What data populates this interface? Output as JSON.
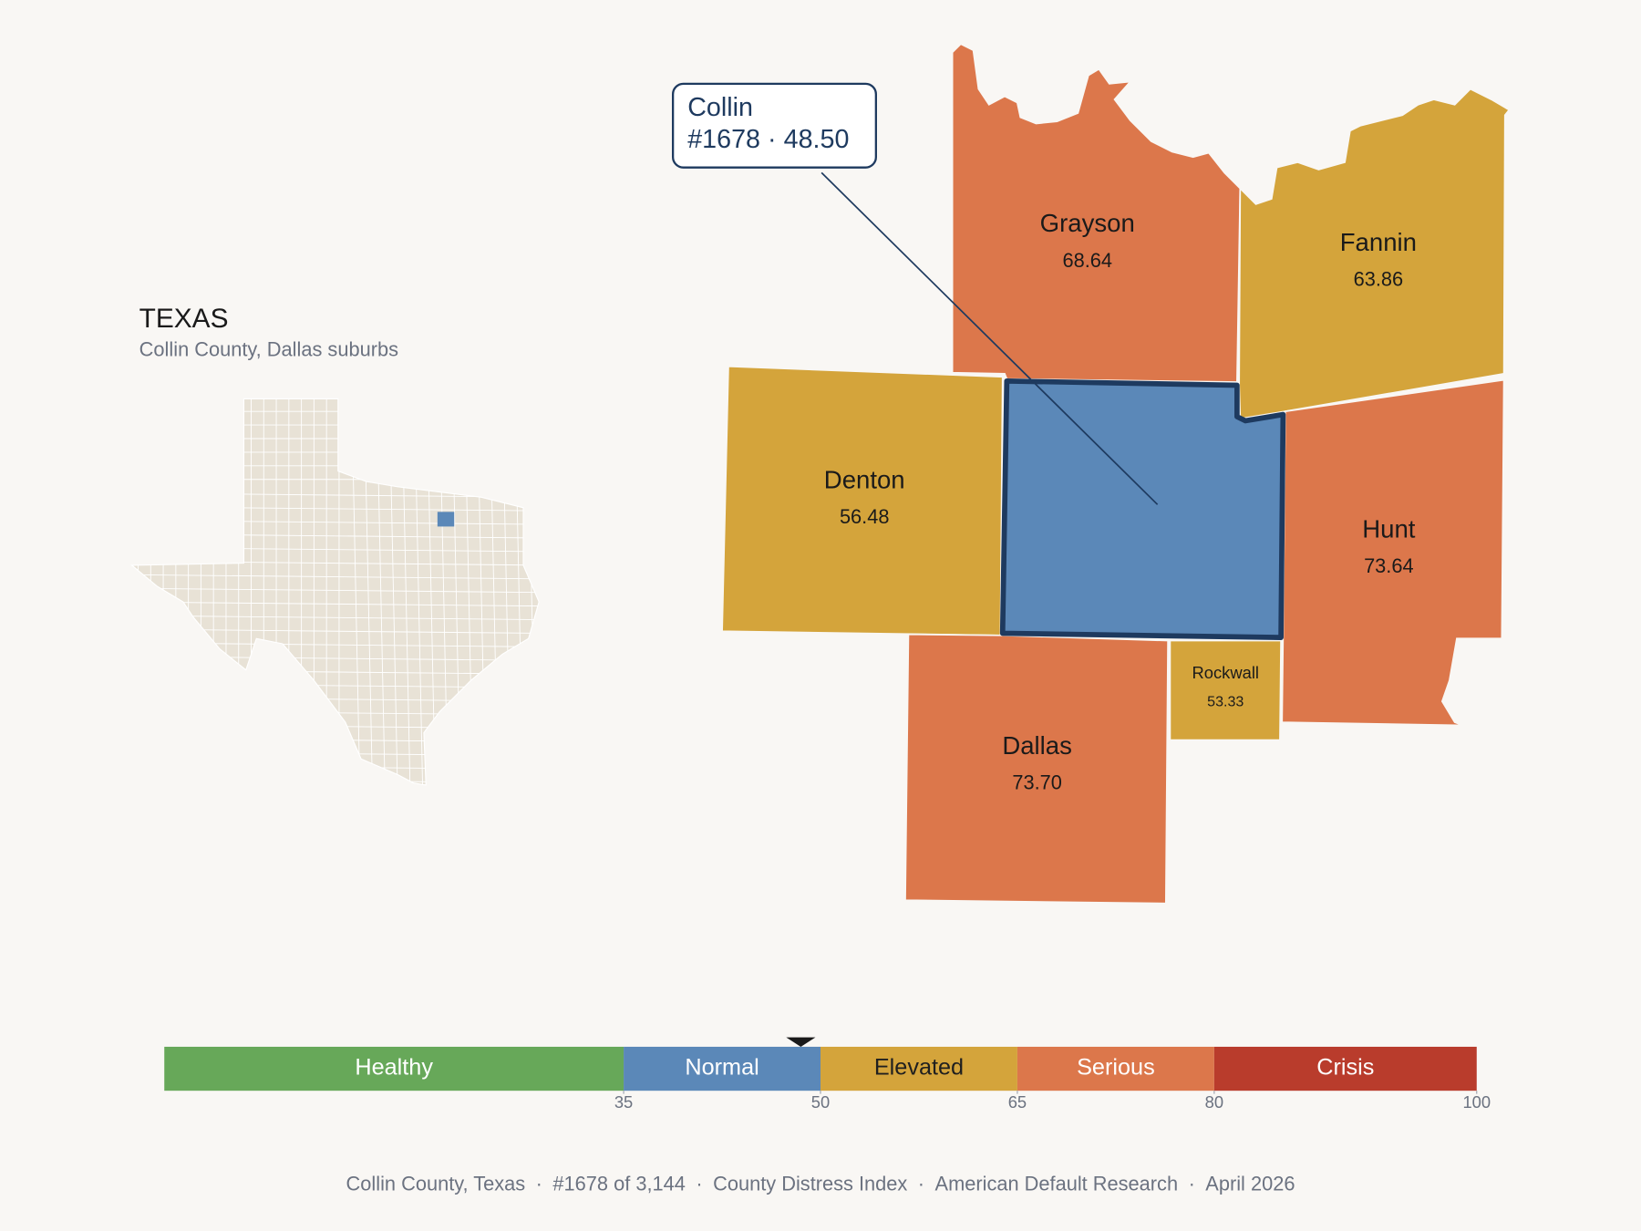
{
  "inset": {
    "title": "TEXAS",
    "subtitle": "Collin County, Dallas suburbs"
  },
  "counties": [
    {
      "name": "Grayson",
      "score": 68.64
    },
    {
      "name": "Fannin",
      "score": 63.86
    },
    {
      "name": "Denton",
      "score": 56.48
    },
    {
      "name": "Collin",
      "score": {
        "value": 48.5,
        "label": "48.50"
      }
    },
    {
      "name": "Hunt",
      "score": 73.64
    },
    {
      "name": "Dallas",
      "score": {
        "value": 73.7,
        "label": "73.70"
      }
    },
    {
      "name": "Rockwall",
      "score": 53.33
    }
  ],
  "callout": {
    "county": 3,
    "rank": "#1678",
    "separator": "·"
  },
  "scale": {
    "lim": [
      0,
      100
    ],
    "ticks": [
      35,
      50,
      65,
      80,
      100
    ],
    "bands": [
      {
        "name": "Healthy",
        "color": "#67a859",
        "label_color": "#ffffff"
      },
      {
        "name": "Normal",
        "color": "#5b88b8",
        "label_color": "#ffffff"
      },
      {
        "name": "Elevated",
        "color": "#d4a43b",
        "label_color": "#1f1f1f"
      },
      {
        "name": "Serious",
        "color": "#dc774b",
        "label_color": "#ffffff"
      },
      {
        "name": "Crisis",
        "color": "#b93c2c",
        "label_color": "#ffffff"
      }
    ]
  },
  "footer": {
    "items": [
      "Collin County, Texas",
      "#1678 of 3,144",
      "County Distress Index",
      "American Default Research",
      "April 2026"
    ],
    "separator": "·"
  }
}
